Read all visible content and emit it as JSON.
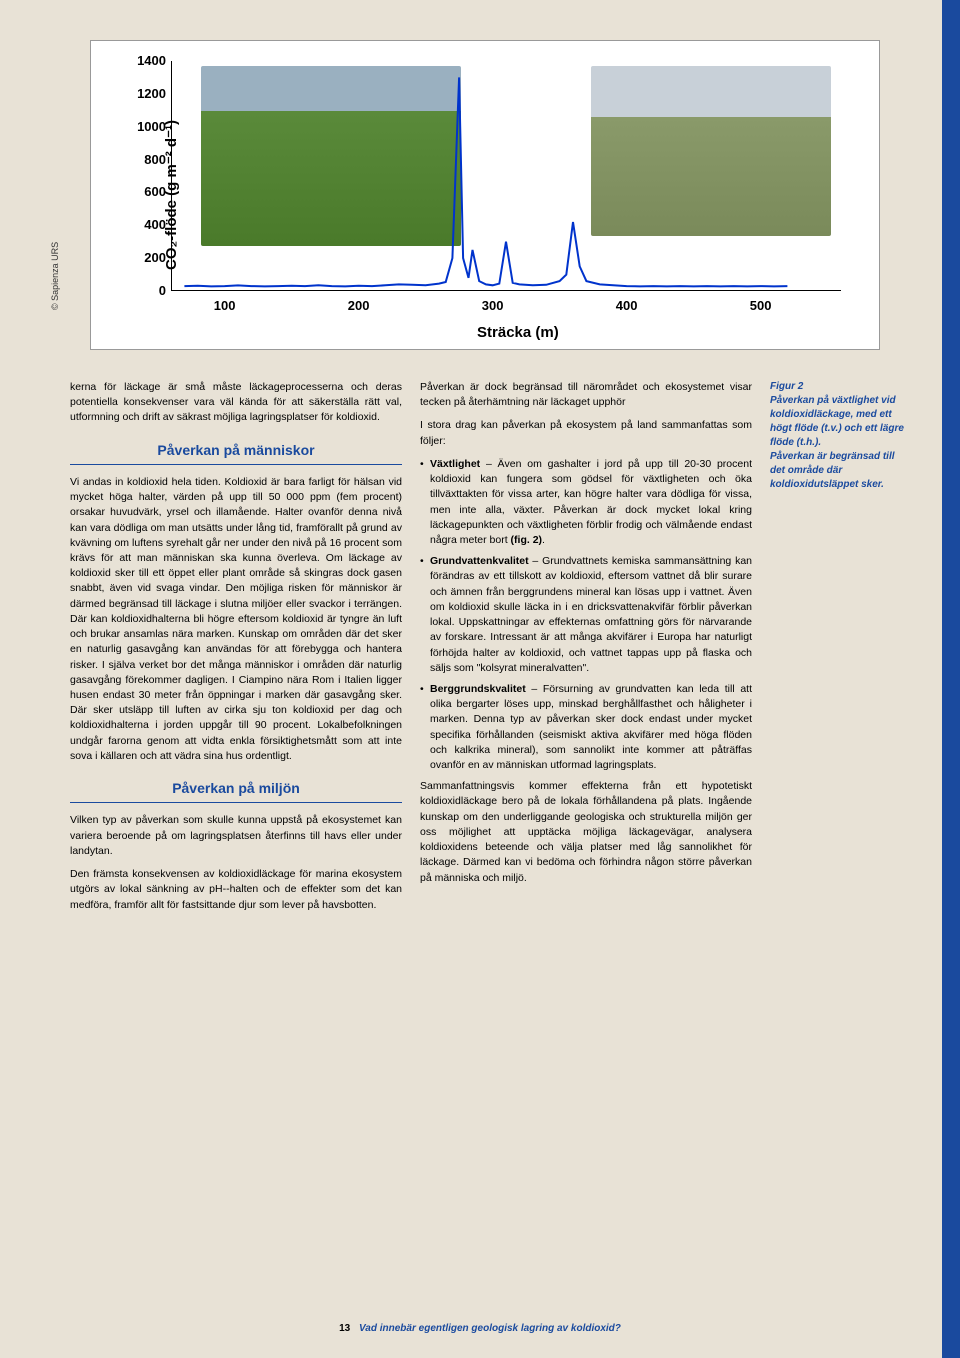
{
  "credit": "© Sapienza URS",
  "chart": {
    "type": "line",
    "y_label": "CO₂-flöde (g m⁻² d⁻¹)",
    "x_label": "Sträcka (m)",
    "y_ticks": [
      0,
      200,
      400,
      600,
      800,
      1000,
      1200,
      1400
    ],
    "x_ticks": [
      100,
      200,
      300,
      400,
      500
    ],
    "ylim": [
      0,
      1400
    ],
    "xlim": [
      60,
      560
    ],
    "line_color": "#0033cc",
    "background_color": "#ffffff",
    "points": [
      [
        70,
        30
      ],
      [
        80,
        32
      ],
      [
        90,
        28
      ],
      [
        100,
        30
      ],
      [
        110,
        34
      ],
      [
        120,
        30
      ],
      [
        130,
        28
      ],
      [
        140,
        30
      ],
      [
        150,
        32
      ],
      [
        160,
        30
      ],
      [
        170,
        35
      ],
      [
        180,
        30
      ],
      [
        190,
        28
      ],
      [
        200,
        32
      ],
      [
        210,
        30
      ],
      [
        220,
        35
      ],
      [
        230,
        40
      ],
      [
        240,
        38
      ],
      [
        250,
        35
      ],
      [
        260,
        45
      ],
      [
        265,
        55
      ],
      [
        270,
        200
      ],
      [
        275,
        1300
      ],
      [
        278,
        200
      ],
      [
        282,
        80
      ],
      [
        285,
        250
      ],
      [
        290,
        60
      ],
      [
        295,
        40
      ],
      [
        300,
        35
      ],
      [
        305,
        45
      ],
      [
        310,
        300
      ],
      [
        315,
        50
      ],
      [
        320,
        40
      ],
      [
        330,
        35
      ],
      [
        340,
        38
      ],
      [
        350,
        60
      ],
      [
        355,
        100
      ],
      [
        360,
        420
      ],
      [
        365,
        150
      ],
      [
        370,
        60
      ],
      [
        380,
        40
      ],
      [
        390,
        35
      ],
      [
        400,
        30
      ],
      [
        410,
        28
      ],
      [
        420,
        30
      ],
      [
        430,
        28
      ],
      [
        440,
        30
      ],
      [
        450,
        28
      ],
      [
        460,
        30
      ],
      [
        470,
        28
      ],
      [
        480,
        30
      ],
      [
        490,
        28
      ],
      [
        500,
        30
      ],
      [
        510,
        28
      ],
      [
        520,
        30
      ]
    ]
  },
  "col1": {
    "intro": "kerna för läckage är små måste läckageprocesserna och deras potentiella konsekvenser vara väl kända för att säkerställa rätt val, utformning och drift av säkrast möjliga lagringsplatser för koldioxid.",
    "heading1": "Påverkan på människor",
    "p1": "Vi andas in koldioxid hela tiden. Koldioxid är bara farligt för hälsan vid mycket höga halter, värden på upp till 50 000 ppm (fem procent) orsakar huvudvärk, yrsel och illamående. Halter ovanför denna nivå kan vara dödliga om man utsätts under lång tid, framförallt på grund av kvävning om luftens syrehalt går ner under den nivå på 16 procent som krävs för att man människan ska kunna överleva. Om läckage av koldioxid sker till ett öppet eller plant område så skingras dock gasen snabbt, även vid svaga vindar. Den möjliga risken för människor är därmed begränsad till läckage i slutna miljöer eller svackor i terrängen. Där kan koldioxidhalterna bli högre eftersom koldioxid är tyngre än luft och brukar ansamlas nära marken. Kunskap om områden där det sker en naturlig gasavgång kan användas för att förebygga och hantera risker. I själva verket bor det många människor i områden där naturlig gasavgång förekommer dagligen. I Ciampino nära Rom i Italien ligger husen endast 30 meter från öppningar i marken där gasavgång sker. Där sker utsläpp till luften av cirka sju ton koldioxid per dag och koldioxidhalterna i jorden uppgår till 90 procent. Lokalbefolkningen undgår farorna genom att vidta enkla försiktighetsmått som att inte sova i källaren och att vädra sina hus ordentligt.",
    "heading2": "Påverkan på miljön",
    "p2": "Vilken typ av påverkan som skulle kunna uppstå på ekosystemet kan variera beroende på om lagringsplatsen återfinns till havs eller under landytan.",
    "p3": "Den främsta konsekvensen av koldioxidläckage för marina ekosystem utgörs av lokal sänkning av pH--halten och de effekter som det kan medföra, framför allt för fastsittande djur som lever på havsbotten."
  },
  "col2": {
    "p1": "Påverkan är dock begränsad till närområdet och ekosystemet visar tecken på återhämtning när läckaget upphör",
    "p2": "I stora drag kan påverkan på ekosystem på land sammanfattas som följer:",
    "b1_title": "Växtlighet",
    "b1_text": " – Även om gashalter i jord på upp till 20-30 procent koldioxid kan fungera som gödsel för växtligheten och öka tillväxttakten för vissa arter, kan högre halter vara dödliga för vissa, men inte alla, växter. Påverkan är dock mycket lokal kring läckagepunkten och växtligheten förblir frodig och välmående endast några meter bort ",
    "b1_figref": "(fig. 2)",
    "b2_title": "Grundvattenkvalitet",
    "b2_text": " – Grundvattnets kemiska sammansättning kan förändras av ett tillskott av koldioxid, eftersom vattnet då blir surare och ämnen från berggrundens mineral kan lösas upp i vattnet. Även om koldioxid skulle läcka in i en dricksvattenakvifär förblir påverkan lokal. Uppskattningar av effekternas omfattning görs för närvarande av forskare. Intressant är att många akvifärer i Europa har naturligt förhöjda halter av koldioxid, och vattnet tappas upp på flaska och säljs som \"kolsyrat mineralvatten\".",
    "b3_title": "Berggrundskvalitet",
    "b3_text": " – Försurning av grundvatten kan leda till att olika bergarter löses upp, minskad berghållfasthet och håligheter i marken. Denna typ av påverkan sker dock endast under mycket specifika förhållanden (seismiskt aktiva akvifärer med höga flöden och kalkrika mineral), som sannolikt inte kommer att påträffas ovanför en av människan utformad lagringsplats.",
    "p3": "Sammanfattningsvis kommer effekterna från ett hypotetiskt koldioxidläckage bero på de lokala förhållandena på plats. Ingående kunskap om den underliggande geologiska och strukturella miljön ger oss möjlighet att upptäcka möjliga läckagevägar, analysera koldioxidens beteende och välja platser med låg sannolikhet för läckage. Därmed kan vi bedöma och förhindra någon större påverkan på människa och miljö."
  },
  "caption": {
    "title": "Figur 2",
    "text": "Påverkan på växtlighet vid koldioxidläckage, med ett högt flöde (t.v.) och ett lägre flöde (t.h.).\nPåverkan är begränsad till det område där koldioxidutsläppet sker."
  },
  "footer": {
    "page": "13",
    "title": "Vad innebär egentligen geologisk lagring av koldioxid?"
  }
}
